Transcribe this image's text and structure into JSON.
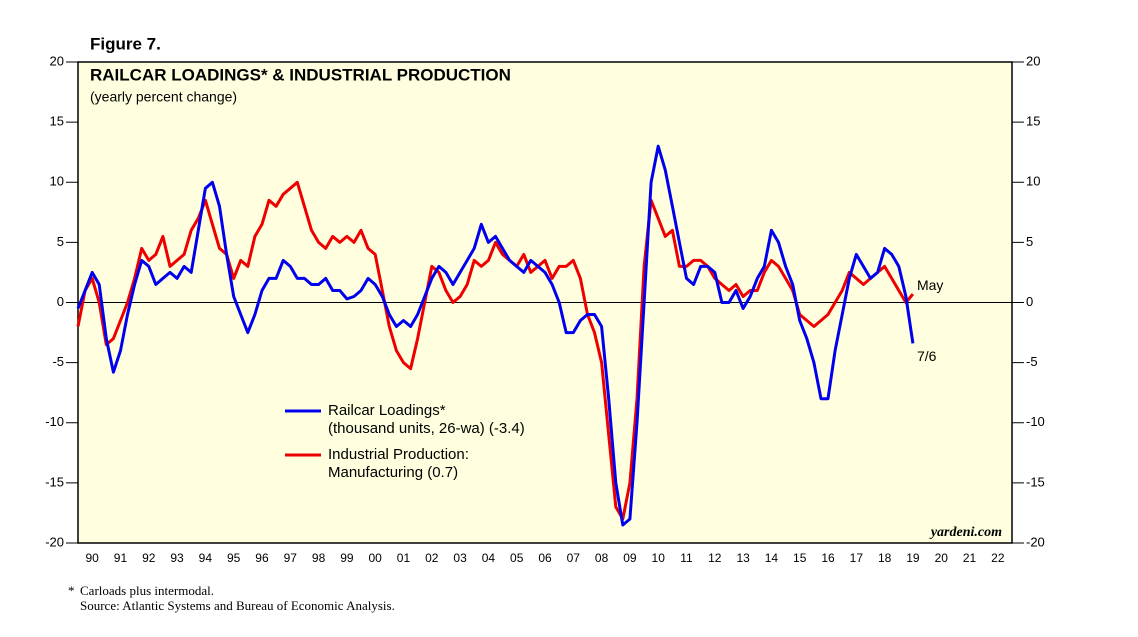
{
  "chart_data": {
    "type": "line",
    "figure_label": "Figure 7.",
    "title": "RAILCAR LOADINGS* & INDUSTRIAL PRODUCTION",
    "subtitle": "(yearly percent change)",
    "source": "yardeni.com",
    "footnote_marker": "*",
    "footnote": "Carloads plus intermodal.",
    "source_note": "Source: Atlantic Systems and Bureau of Economic Analysis.",
    "xlim": [
      1990,
      2023
    ],
    "ylim": [
      -20,
      20
    ],
    "yticks": [
      -20,
      -15,
      -10,
      -5,
      0,
      5,
      10,
      15,
      20
    ],
    "y2lim": [
      -20,
      20
    ],
    "y2ticks": [
      -20,
      -15,
      -10,
      -5,
      0,
      5,
      10,
      15,
      20
    ],
    "xticks": [
      {
        "value": 1990.5,
        "label": "90"
      },
      {
        "value": 1991.5,
        "label": "91"
      },
      {
        "value": 1992.5,
        "label": "92"
      },
      {
        "value": 1993.5,
        "label": "93"
      },
      {
        "value": 1994.5,
        "label": "94"
      },
      {
        "value": 1995.5,
        "label": "95"
      },
      {
        "value": 1996.5,
        "label": "96"
      },
      {
        "value": 1997.5,
        "label": "97"
      },
      {
        "value": 1998.5,
        "label": "98"
      },
      {
        "value": 1999.5,
        "label": "99"
      },
      {
        "value": 2000.5,
        "label": "00"
      },
      {
        "value": 2001.5,
        "label": "01"
      },
      {
        "value": 2002.5,
        "label": "02"
      },
      {
        "value": 2003.5,
        "label": "03"
      },
      {
        "value": 2004.5,
        "label": "04"
      },
      {
        "value": 2005.5,
        "label": "05"
      },
      {
        "value": 2006.5,
        "label": "06"
      },
      {
        "value": 2007.5,
        "label": "07"
      },
      {
        "value": 2008.5,
        "label": "08"
      },
      {
        "value": 2009.5,
        "label": "09"
      },
      {
        "value": 2010.5,
        "label": "10"
      },
      {
        "value": 2011.5,
        "label": "11"
      },
      {
        "value": 2012.5,
        "label": "12"
      },
      {
        "value": 2013.5,
        "label": "13"
      },
      {
        "value": 2014.5,
        "label": "14"
      },
      {
        "value": 2015.5,
        "label": "15"
      },
      {
        "value": 2016.5,
        "label": "16"
      },
      {
        "value": 2017.5,
        "label": "17"
      },
      {
        "value": 2018.5,
        "label": "18"
      },
      {
        "value": 2019.5,
        "label": "19"
      },
      {
        "value": 2020.5,
        "label": "20"
      },
      {
        "value": 2021.5,
        "label": "21"
      },
      {
        "value": 2022.5,
        "label": "22"
      }
    ],
    "x": [
      1990.0,
      1990.25,
      1990.5,
      1990.75,
      1991.0,
      1991.25,
      1991.5,
      1991.75,
      1992.0,
      1992.25,
      1992.5,
      1992.75,
      1993.0,
      1993.25,
      1993.5,
      1993.75,
      1994.0,
      1994.25,
      1994.5,
      1994.75,
      1995.0,
      1995.25,
      1995.5,
      1995.75,
      1996.0,
      1996.25,
      1996.5,
      1996.75,
      1997.0,
      1997.25,
      1997.5,
      1997.75,
      1998.0,
      1998.25,
      1998.5,
      1998.75,
      1999.0,
      1999.25,
      1999.5,
      1999.75,
      2000.0,
      2000.25,
      2000.5,
      2000.75,
      2001.0,
      2001.25,
      2001.5,
      2001.75,
      2002.0,
      2002.25,
      2002.5,
      2002.75,
      2003.0,
      2003.25,
      2003.5,
      2003.75,
      2004.0,
      2004.25,
      2004.5,
      2004.75,
      2005.0,
      2005.25,
      2005.5,
      2005.75,
      2006.0,
      2006.25,
      2006.5,
      2006.75,
      2007.0,
      2007.25,
      2007.5,
      2007.75,
      2008.0,
      2008.25,
      2008.5,
      2008.75,
      2009.0,
      2009.25,
      2009.5,
      2009.75,
      2010.0,
      2010.25,
      2010.5,
      2010.75,
      2011.0,
      2011.25,
      2011.5,
      2011.75,
      2012.0,
      2012.25,
      2012.5,
      2012.75,
      2013.0,
      2013.25,
      2013.5,
      2013.75,
      2014.0,
      2014.25,
      2014.5,
      2014.75,
      2015.0,
      2015.25,
      2015.5,
      2015.75,
      2016.0,
      2016.25,
      2016.5,
      2016.75,
      2017.0,
      2017.25,
      2017.5,
      2017.75,
      2018.0,
      2018.25,
      2018.5,
      2018.75,
      2019.0,
      2019.25,
      2019.5
    ],
    "series": [
      {
        "name": "Railcar Loadings*",
        "detail": "(thousand units, 26-wa) (-3.4)",
        "end_label": "7/6",
        "color": "#0000ee",
        "values": [
          -0.5,
          1,
          2.5,
          1.5,
          -3,
          -5.8,
          -4,
          -1,
          1.5,
          3.5,
          3,
          1.5,
          2,
          2.5,
          2,
          3,
          2.5,
          6,
          9.5,
          10,
          8,
          4,
          0.5,
          -1,
          -2.5,
          -1,
          1,
          2,
          2,
          3.5,
          3,
          2,
          2,
          1.5,
          1.5,
          2,
          1,
          1,
          0.3,
          0.5,
          1,
          2,
          1.5,
          0.5,
          -1,
          -2,
          -1.5,
          -2,
          -1,
          0.5,
          2,
          3,
          2.5,
          1.5,
          2.5,
          3.5,
          4.5,
          6.5,
          5,
          5.5,
          4.5,
          3.5,
          3,
          2.5,
          3.5,
          3,
          2.5,
          1.5,
          0,
          -2.5,
          -2.5,
          -1.5,
          -1,
          -1,
          -2,
          -8,
          -15,
          -18.5,
          -18,
          -10,
          0,
          10,
          13,
          11,
          8,
          5,
          2,
          1.5,
          3,
          3,
          2.5,
          0,
          0,
          1,
          -0.5,
          0.5,
          2,
          3,
          6,
          5,
          3,
          1.5,
          -1.5,
          -3,
          -5,
          -8,
          -8,
          -4,
          -1,
          2,
          4,
          3,
          2,
          2.5,
          4.5,
          4,
          3,
          0.5,
          -3.4
        ]
      },
      {
        "name": "Industrial Production:",
        "detail": "Manufacturing (0.7)",
        "end_label": "May",
        "color": "#ee0000",
        "values": [
          -2,
          1,
          2,
          0,
          -3.5,
          -3,
          -1.5,
          0,
          2,
          4.5,
          3.5,
          4,
          5.5,
          3,
          3.5,
          4,
          6,
          7,
          8.5,
          6.5,
          4.5,
          4,
          2,
          3.5,
          3,
          5.5,
          6.5,
          8.5,
          8,
          9,
          9.5,
          10,
          8,
          6,
          5,
          4.5,
          5.5,
          5,
          5.5,
          5,
          6,
          4.5,
          4,
          1,
          -2,
          -4,
          -5,
          -5.5,
          -3,
          0,
          3,
          2.5,
          1,
          0,
          0.5,
          1.5,
          3.5,
          3,
          3.5,
          5,
          4,
          3.5,
          3,
          4,
          2.5,
          3,
          3.5,
          2,
          3,
          3,
          3.5,
          2,
          -1,
          -2.5,
          -5,
          -11,
          -17,
          -18,
          -15,
          -8,
          3,
          8.5,
          7,
          5.5,
          6,
          3,
          3,
          3.5,
          3.5,
          3,
          2,
          1.5,
          1,
          1.5,
          0.5,
          1,
          1,
          2.5,
          3.5,
          3,
          2,
          1,
          -1,
          -1.5,
          -2,
          -1.5,
          -1,
          0,
          1,
          2.5,
          2,
          1.5,
          2,
          2.5,
          3,
          2,
          1,
          0,
          0.7
        ]
      }
    ]
  }
}
